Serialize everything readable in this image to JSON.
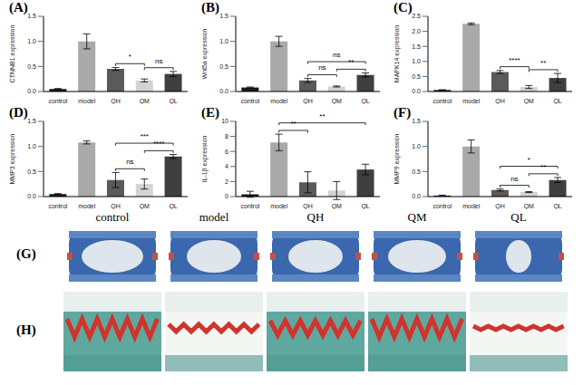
{
  "chart_data": [
    {
      "type": "bar",
      "panel": "(A)",
      "y_label": "CTNNB1 expression",
      "categories": [
        "control",
        "model",
        "QH",
        "QM",
        "QL"
      ],
      "values": [
        0.05,
        1.0,
        0.45,
        0.22,
        0.35
      ],
      "errors": [
        0.01,
        0.15,
        0.03,
        0.03,
        0.05
      ],
      "colors": [
        "#1a1a1a",
        "#a9a9a9",
        "#5a5a5a",
        "#d3d3d3",
        "#3f3f3f"
      ],
      "ylim": [
        0,
        1.5
      ],
      "yticks": [
        {
          "value": 0,
          "label": "0.0"
        },
        {
          "value": 0.5,
          "label": "0.5"
        },
        {
          "value": 1,
          "label": "1.0"
        },
        {
          "value": 1.5,
          "label": "1.5"
        }
      ],
      "annotations": [
        {
          "from": "QH",
          "to": "QM",
          "label": "*"
        },
        {
          "from": "QM",
          "to": "QL",
          "label": "ns"
        }
      ]
    },
    {
      "type": "bar",
      "panel": "(B)",
      "y_label": "Wnt5a expression",
      "categories": [
        "control",
        "model",
        "QH",
        "QM",
        "QL"
      ],
      "values": [
        0.08,
        1.0,
        0.22,
        0.1,
        0.33
      ],
      "errors": [
        0.01,
        0.1,
        0.04,
        0.01,
        0.04
      ],
      "colors": [
        "#1a1a1a",
        "#a9a9a9",
        "#5a5a5a",
        "#d3d3d3",
        "#3f3f3f"
      ],
      "ylim": [
        0,
        1.5
      ],
      "yticks": [
        {
          "value": 0,
          "label": "0.0"
        },
        {
          "value": 0.5,
          "label": "0.5"
        },
        {
          "value": 1,
          "label": "1.0"
        },
        {
          "value": 1.5,
          "label": "1.5"
        }
      ],
      "annotations": [
        {
          "from": "QH",
          "to": "QM",
          "label": "ns"
        },
        {
          "from": "QM",
          "to": "QL",
          "label": "**"
        },
        {
          "from": "QH",
          "to": "QL",
          "label": "ns"
        }
      ]
    },
    {
      "type": "bar",
      "panel": "(C)",
      "y_label": "MAPK14 expression",
      "categories": [
        "control",
        "model",
        "QH",
        "QM",
        "QL"
      ],
      "values": [
        0.05,
        2.25,
        0.65,
        0.15,
        0.45
      ],
      "errors": [
        0.01,
        0.03,
        0.05,
        0.05,
        0.15
      ],
      "colors": [
        "#1a1a1a",
        "#a9a9a9",
        "#5a5a5a",
        "#d3d3d3",
        "#3f3f3f"
      ],
      "ylim": [
        0,
        2.5
      ],
      "yticks": [
        {
          "value": 0,
          "label": "0.0"
        },
        {
          "value": 0.5,
          "label": "0.5"
        },
        {
          "value": 1,
          "label": "1.0"
        },
        {
          "value": 1.5,
          "label": "1.5"
        },
        {
          "value": 2,
          "label": "2.0"
        },
        {
          "value": 2.5,
          "label": "2.5"
        }
      ],
      "annotations": [
        {
          "from": "QH",
          "to": "QM",
          "label": "****"
        },
        {
          "from": "QM",
          "to": "QL",
          "label": "**"
        }
      ]
    },
    {
      "type": "bar",
      "panel": "(D)",
      "y_label": "MMP3 expression",
      "categories": [
        "control",
        "model",
        "QH",
        "QM",
        "QL"
      ],
      "values": [
        0.05,
        1.08,
        0.33,
        0.25,
        0.8
      ],
      "errors": [
        0.01,
        0.03,
        0.15,
        0.1,
        0.04
      ],
      "colors": [
        "#1a1a1a",
        "#a9a9a9",
        "#5a5a5a",
        "#d3d3d3",
        "#3f3f3f"
      ],
      "ylim": [
        0,
        1.5
      ],
      "yticks": [
        {
          "value": 0,
          "label": "0.0"
        },
        {
          "value": 0.5,
          "label": "0.5"
        },
        {
          "value": 1,
          "label": "1.0"
        },
        {
          "value": 1.5,
          "label": "1.5"
        }
      ],
      "annotations": [
        {
          "from": "QH",
          "to": "QM",
          "label": "ns"
        },
        {
          "from": "QM",
          "to": "QL",
          "label": "****"
        },
        {
          "from": "QH",
          "to": "QL",
          "label": "***"
        }
      ]
    },
    {
      "type": "bar",
      "panel": "(E)",
      "y_label": "IL-1β expression",
      "categories": [
        "control",
        "model",
        "QH",
        "QM",
        "QL"
      ],
      "values": [
        0.3,
        7.2,
        1.9,
        0.8,
        3.6
      ],
      "errors": [
        0.4,
        1.1,
        1.4,
        1.2,
        0.7
      ],
      "colors": [
        "#1a1a1a",
        "#a9a9a9",
        "#5a5a5a",
        "#d3d3d3",
        "#3f3f3f"
      ],
      "ylim": [
        0,
        10
      ],
      "yticks": [
        0,
        2,
        4,
        6,
        8,
        10
      ],
      "annotations": [
        {
          "from": "model",
          "to": "QH",
          "label": "**"
        },
        {
          "from": "model",
          "to": "QL",
          "label": "**"
        }
      ]
    },
    {
      "type": "bar",
      "panel": "(F)",
      "y_label": "MMP9 expression",
      "categories": [
        "control",
        "model",
        "QH",
        "QM",
        "QL"
      ],
      "values": [
        0.02,
        1.0,
        0.13,
        0.09,
        0.33
      ],
      "errors": [
        0.01,
        0.13,
        0.02,
        0.01,
        0.05
      ],
      "colors": [
        "#1a1a1a",
        "#a9a9a9",
        "#5a5a5a",
        "#d3d3d3",
        "#3f3f3f"
      ],
      "ylim": [
        0,
        1.5
      ],
      "yticks": [
        {
          "value": 0,
          "label": "0.0"
        },
        {
          "value": 0.5,
          "label": "0.5"
        },
        {
          "value": 1,
          "label": "1.0"
        },
        {
          "value": 1.5,
          "label": "1.5"
        }
      ],
      "annotations": [
        {
          "from": "QH",
          "to": "QM",
          "label": "ns"
        },
        {
          "from": "QM",
          "to": "QL",
          "label": "**"
        },
        {
          "from": "QH",
          "to": "QL",
          "label": "*"
        }
      ]
    }
  ],
  "histology": {
    "column_labels": [
      "control",
      "model",
      "QH",
      "QM",
      "QL"
    ],
    "rows": [
      "(G)",
      "(H)"
    ]
  }
}
